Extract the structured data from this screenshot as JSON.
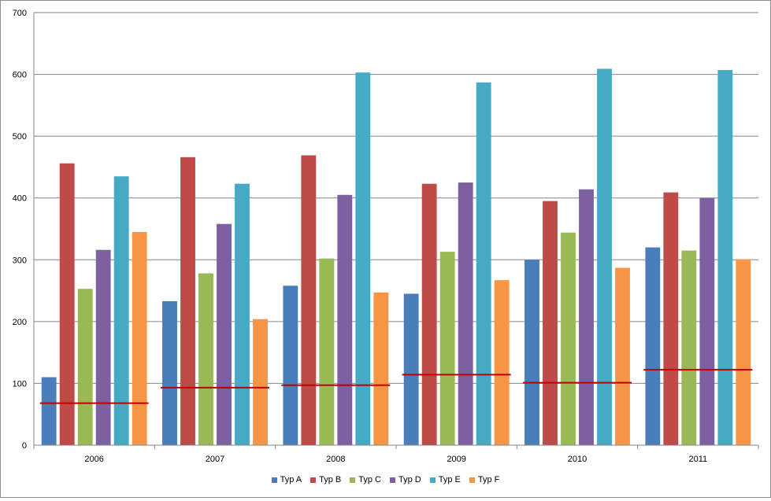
{
  "chart_data": {
    "type": "bar",
    "categories": [
      "2006",
      "2007",
      "2008",
      "2009",
      "2010",
      "2011"
    ],
    "ylim": [
      0,
      700
    ],
    "yticks": [
      0,
      100,
      200,
      300,
      400,
      500,
      600,
      700
    ],
    "grid": true,
    "legend_position": "bottom",
    "series": [
      {
        "name": "Typ A",
        "color": "#4a7ebb",
        "values": [
          110,
          233,
          258,
          245,
          300,
          320
        ]
      },
      {
        "name": "Typ B",
        "color": "#be4b48",
        "values": [
          456,
          466,
          469,
          423,
          395,
          409
        ]
      },
      {
        "name": "Typ C",
        "color": "#98b954",
        "values": [
          253,
          278,
          302,
          313,
          344,
          315
        ]
      },
      {
        "name": "Typ D",
        "color": "#7d60a0",
        "values": [
          316,
          358,
          405,
          425,
          414,
          400
        ]
      },
      {
        "name": "Typ E",
        "color": "#46aac5",
        "values": [
          435,
          423,
          603,
          587,
          609,
          607
        ]
      },
      {
        "name": "Typ F",
        "color": "#f69546",
        "values": [
          345,
          204,
          247,
          267,
          287,
          301
        ]
      }
    ],
    "reference_line": {
      "color": "#c00000",
      "values": [
        68,
        93,
        97,
        114,
        101,
        122
      ]
    }
  }
}
